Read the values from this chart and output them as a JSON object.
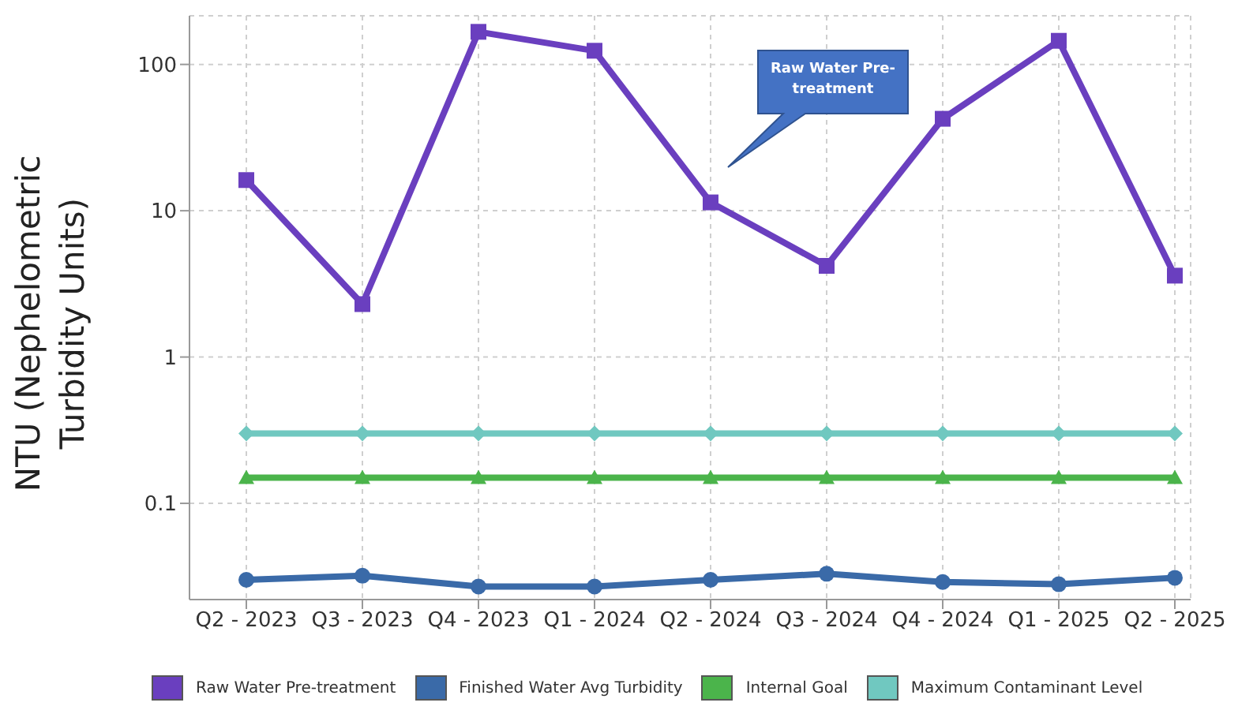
{
  "chart_data": {
    "type": "line",
    "ylabel": "NTU (Nephelometric Turbidity Units)",
    "log": true,
    "grid": true,
    "legend": "bottom",
    "categories": [
      "Q2 - 2023",
      "Q3 - 2023",
      "Q4 - 2023",
      "Q1 - 2024",
      "Q2 - 2024",
      "Q3 - 2024",
      "Q4 - 2024",
      "Q1 - 2025",
      "Q2 - 2025"
    ],
    "ylim": [
      0.022,
      215
    ],
    "yticks": [
      0.1,
      1,
      10,
      100
    ],
    "series": [
      {
        "name": "Raw Water Pre-treatment",
        "color": "#6a3fbf",
        "marker": "square",
        "values": [
          16.2,
          2.3,
          167,
          124,
          11.4,
          4.2,
          42.5,
          145,
          3.6
        ]
      },
      {
        "name": "Finished Water Avg Turbidity",
        "color": "#3a6aa8",
        "marker": "circle",
        "values": [
          0.03,
          0.032,
          0.027,
          0.027,
          0.03,
          0.033,
          0.029,
          0.028,
          0.031
        ]
      },
      {
        "name": "Internal Goal",
        "color": "#4bb44b",
        "marker": "triangle",
        "values": [
          0.15,
          0.15,
          0.15,
          0.15,
          0.15,
          0.15,
          0.15,
          0.15,
          0.15
        ]
      },
      {
        "name": "Maximum Contaminant Level",
        "color": "#70c8c0",
        "marker": "diamond",
        "values": [
          0.3,
          0.3,
          0.3,
          0.3,
          0.3,
          0.3,
          0.3,
          0.3,
          0.3
        ]
      }
    ],
    "annotations": [
      "Raw Water Pre- treatment"
    ]
  }
}
